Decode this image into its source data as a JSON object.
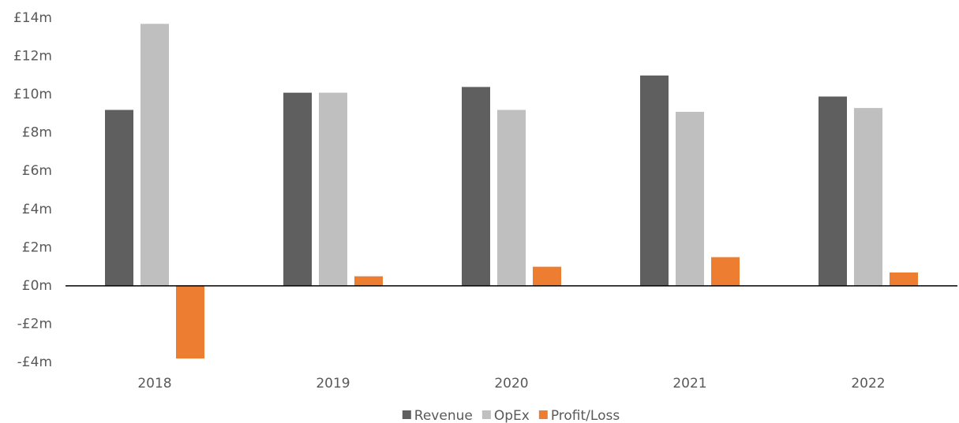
{
  "chart_data": {
    "type": "bar",
    "categories": [
      "2018",
      "2019",
      "2020",
      "2021",
      "2022"
    ],
    "series": [
      {
        "name": "Revenue",
        "color": "#5f5f5f",
        "values": [
          9.2,
          10.1,
          10.4,
          11.0,
          9.9
        ]
      },
      {
        "name": "OpEx",
        "color": "#bfbfbf",
        "values": [
          13.7,
          10.1,
          9.2,
          9.1,
          9.3
        ]
      },
      {
        "name": "Profit/Loss",
        "color": "#ed7d31",
        "values": [
          -3.8,
          0.5,
          1.0,
          1.5,
          0.7
        ]
      }
    ],
    "ylim": [
      -4,
      14
    ],
    "yticks": [
      {
        "value": -4,
        "label": "-£4m"
      },
      {
        "value": -2,
        "label": "-£2m"
      },
      {
        "value": 0,
        "label": "£0m"
      },
      {
        "value": 2,
        "label": "£2m"
      },
      {
        "value": 4,
        "label": "£4m"
      },
      {
        "value": 6,
        "label": "£6m"
      },
      {
        "value": 8,
        "label": "£8m"
      },
      {
        "value": 10,
        "label": "£10m"
      },
      {
        "value": 12,
        "label": "£12m"
      },
      {
        "value": 14,
        "label": "£14m"
      }
    ],
    "grid": false,
    "legend": "bottom"
  }
}
